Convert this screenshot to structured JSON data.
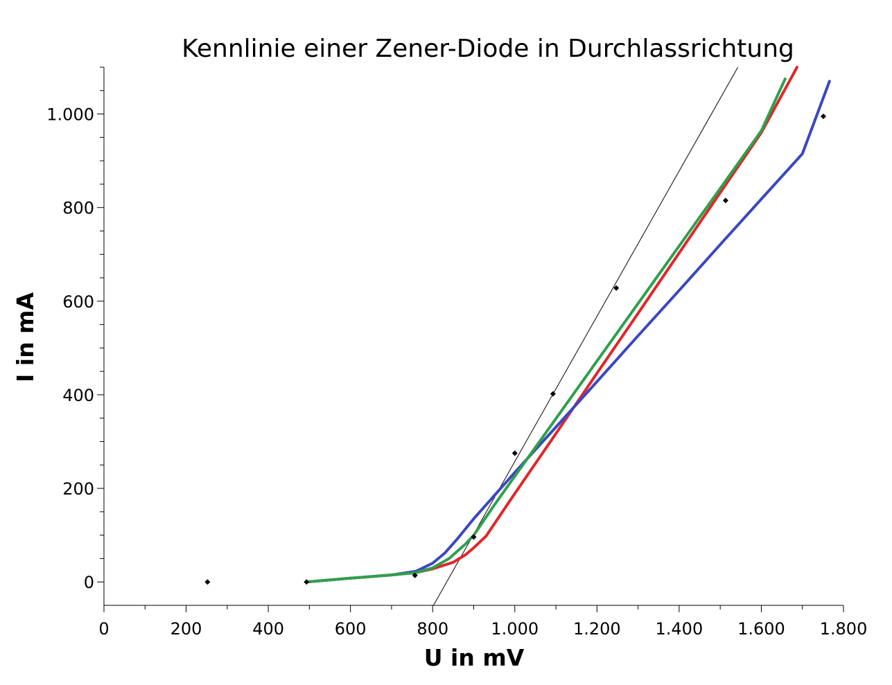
{
  "chart_data": {
    "type": "line",
    "title": "Kennlinie einer Zener-Diode in Durchlassrichtung",
    "xlabel": "U in mV",
    "ylabel": "I in mA",
    "xlim": [
      0,
      1800
    ],
    "ylim": [
      -50,
      1100
    ],
    "xticks": [
      {
        "value": 0,
        "label": "0"
      },
      {
        "value": 200,
        "label": "200"
      },
      {
        "value": 400,
        "label": "400"
      },
      {
        "value": 600,
        "label": "600"
      },
      {
        "value": 800,
        "label": "800"
      },
      {
        "value": 1000,
        "label": "1.000"
      },
      {
        "value": 1200,
        "label": "1.200"
      },
      {
        "value": 1400,
        "label": "1.400"
      },
      {
        "value": 1600,
        "label": "1.600"
      },
      {
        "value": 1800,
        "label": "1.800"
      }
    ],
    "yticks": [
      {
        "value": 0,
        "label": "0"
      },
      {
        "value": 200,
        "label": "200"
      },
      {
        "value": 400,
        "label": "400"
      },
      {
        "value": 600,
        "label": "600"
      },
      {
        "value": 800,
        "label": "800"
      },
      {
        "value": 1000,
        "label": "1.000"
      }
    ],
    "grid": false,
    "legend": "none",
    "measured_points": {
      "color": "#000000",
      "x": [
        252,
        493,
        757,
        900,
        1000,
        1093,
        1247,
        1513,
        1751
      ],
      "y": [
        0,
        0,
        14,
        96,
        275,
        402,
        628,
        815,
        995
      ]
    },
    "tangent_line": {
      "color": "#000000",
      "x": [
        802,
        1543
      ],
      "y": [
        -50,
        1100
      ]
    },
    "series": [
      {
        "color": "#e0262a",
        "x": [
          493,
          600,
          700,
          760,
          800,
          850,
          880,
          900,
          930,
          1000,
          1100,
          1200,
          1300,
          1400,
          1500,
          1600,
          1687
        ],
        "y": [
          0,
          8,
          15,
          20,
          28,
          42,
          58,
          73,
          98,
          189,
          317,
          446,
          574,
          703,
          832,
          960,
          1100
        ]
      },
      {
        "color": "#3b47c2",
        "x": [
          493,
          600,
          700,
          760,
          800,
          830,
          860,
          900,
          1000,
          1100,
          1200,
          1300,
          1400,
          1500,
          1600,
          1700,
          1766
        ],
        "y": [
          0,
          8,
          15,
          23,
          40,
          62,
          92,
          135,
          234,
          331,
          428,
          526,
          623,
          721,
          818,
          915,
          1070
        ]
      },
      {
        "color": "#2ea04c",
        "x": [
          493,
          600,
          700,
          760,
          800,
          840,
          880,
          900,
          950,
          1000,
          1100,
          1200,
          1300,
          1400,
          1500,
          1600,
          1658
        ],
        "y": [
          0,
          8,
          15,
          20,
          30,
          50,
          81,
          100,
          164,
          226,
          349,
          472,
          595,
          718,
          841,
          964,
          1075
        ]
      }
    ]
  }
}
